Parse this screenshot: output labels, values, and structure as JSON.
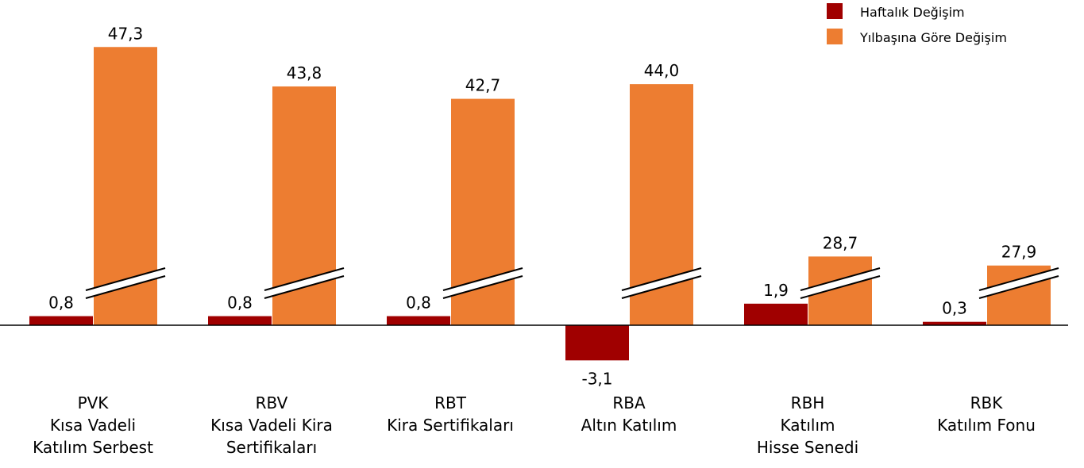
{
  "chart_data": {
    "type": "bar",
    "categories": [
      "PVK\nKısa Vadeli\nKatılım Serbest",
      "RBV\nKısa Vadeli Kira\nSertifikaları",
      "RBT\nKira Sertifikaları",
      "RBA\nAltın Katılım",
      "RBH\nKatılım\nHisse Senedi",
      "RBK\nKatılım Fonu"
    ],
    "series": [
      {
        "name": "Haftalık Değişim",
        "color": "#a00000",
        "values": [
          0.8,
          0.8,
          0.8,
          -3.1,
          1.9,
          0.3
        ],
        "value_labels": [
          "0,8",
          "0,8",
          "0,8",
          "-3,1",
          "1,9",
          "0,3"
        ]
      },
      {
        "name": "Yılbaşına Göre Değişim",
        "color": "#ed7d31",
        "values": [
          47.3,
          43.8,
          42.7,
          44.0,
          28.7,
          27.9
        ],
        "value_labels": [
          "47,3",
          "43,8",
          "42,7",
          "44,0",
          "28,7",
          "27,9"
        ],
        "axis_break": true
      }
    ]
  }
}
